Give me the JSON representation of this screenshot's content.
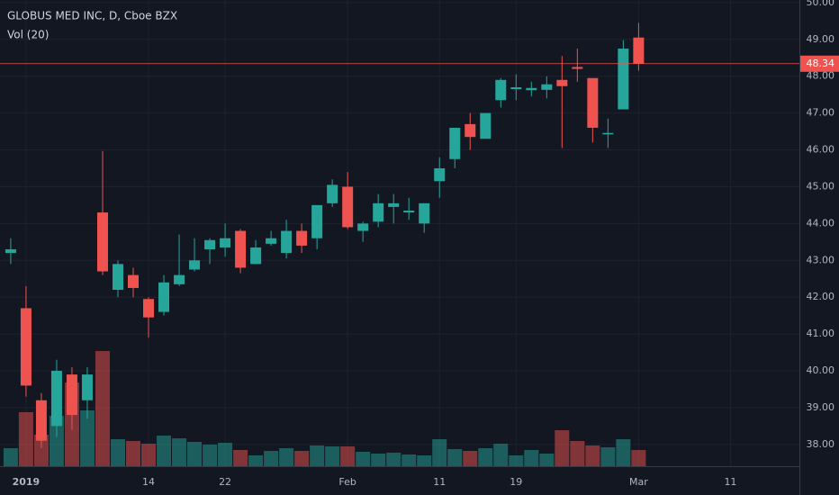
{
  "chart_data": {
    "type": "candlestick",
    "title": "GLOBUS MED INC, D, Cboe BZX",
    "subtitle": "Vol (20)",
    "up_color": "#26a69a",
    "down_color": "#ef5350",
    "open": [
      43.2,
      41.7,
      39.2,
      38.5,
      39.9,
      39.2,
      44.3,
      42.2,
      42.6,
      41.95,
      41.6,
      42.35,
      42.75,
      43.3,
      43.35,
      43.8,
      42.9,
      43.45,
      43.2,
      43.8,
      43.6,
      44.55,
      45.0,
      43.8,
      44.05,
      44.45,
      44.3,
      44.0,
      45.15,
      45.75,
      46.7,
      46.3,
      47.35,
      47.65,
      47.62,
      47.63,
      47.9,
      48.25,
      47.95,
      46.42,
      47.1,
      49.05
    ],
    "high": [
      43.6,
      42.3,
      39.4,
      40.3,
      40.1,
      40.1,
      45.97,
      43.0,
      42.8,
      42.0,
      42.6,
      43.7,
      43.6,
      43.6,
      44.0,
      43.85,
      43.55,
      43.8,
      44.1,
      44.0,
      44.5,
      45.2,
      45.4,
      44.05,
      44.8,
      44.8,
      44.7,
      44.55,
      45.8,
      46.6,
      47.0,
      47.0,
      47.95,
      48.05,
      47.85,
      48.0,
      48.55,
      48.75,
      47.95,
      46.85,
      48.98,
      49.45
    ],
    "low": [
      42.9,
      39.3,
      37.9,
      38.2,
      38.4,
      38.7,
      42.6,
      42.0,
      42.0,
      40.9,
      41.5,
      42.3,
      42.7,
      42.9,
      43.1,
      42.65,
      42.9,
      43.4,
      43.05,
      43.2,
      43.3,
      44.45,
      43.85,
      43.5,
      43.9,
      44.0,
      44.1,
      43.75,
      44.7,
      45.5,
      46.0,
      46.3,
      47.15,
      47.35,
      47.45,
      47.4,
      46.05,
      47.85,
      46.2,
      46.05,
      47.1,
      48.15
    ],
    "close": [
      43.3,
      39.6,
      38.1,
      40.0,
      38.8,
      39.9,
      42.7,
      42.9,
      42.25,
      41.45,
      42.4,
      42.6,
      43.0,
      43.55,
      43.6,
      42.8,
      43.35,
      43.6,
      43.8,
      43.4,
      44.5,
      45.05,
      43.9,
      44.0,
      44.55,
      44.55,
      44.35,
      44.55,
      45.5,
      46.6,
      46.35,
      47.0,
      47.9,
      47.7,
      47.68,
      47.78,
      47.73,
      48.2,
      46.6,
      46.46,
      48.75,
      48.34
    ],
    "volume": [
      200000,
      600000,
      350000,
      560000,
      930000,
      620000,
      1280000,
      300000,
      280000,
      250000,
      340000,
      310000,
      270000,
      240000,
      260000,
      180000,
      120000,
      170000,
      200000,
      170000,
      230000,
      220000,
      220000,
      160000,
      140000,
      150000,
      130000,
      120000,
      300000,
      190000,
      170000,
      200000,
      250000,
      120000,
      180000,
      140000,
      400000,
      280000,
      230000,
      210000,
      300000,
      180000
    ],
    "last_price": 48.34,
    "ylim": [
      37.41,
      50.07
    ],
    "yticks": [
      {
        "value": 50,
        "label": "50.00"
      },
      {
        "value": 49,
        "label": "49.00"
      },
      {
        "value": 48,
        "label": "48.00"
      },
      {
        "value": 47,
        "label": "47.00"
      },
      {
        "value": 46,
        "label": "46.00"
      },
      {
        "value": 45,
        "label": "45.00"
      },
      {
        "value": 44,
        "label": "44.00"
      },
      {
        "value": 43,
        "label": "43.00"
      },
      {
        "value": 42,
        "label": "42.00"
      },
      {
        "value": 41,
        "label": "41.00"
      },
      {
        "value": 40,
        "label": "40.00"
      },
      {
        "value": 39,
        "label": "39.00"
      },
      {
        "value": 38,
        "label": "38.00"
      }
    ],
    "xlim": [
      -0.7,
      51.5
    ],
    "xticks": [
      {
        "value": 1,
        "label": "2019"
      },
      {
        "value": 9,
        "label": "14"
      },
      {
        "value": 14,
        "label": "22"
      },
      {
        "value": 22,
        "label": "Feb"
      },
      {
        "value": 28,
        "label": "11"
      },
      {
        "value": 33,
        "label": "19"
      },
      {
        "value": 41,
        "label": "Mar"
      },
      {
        "value": 47,
        "label": "11"
      }
    ],
    "grid": true
  }
}
